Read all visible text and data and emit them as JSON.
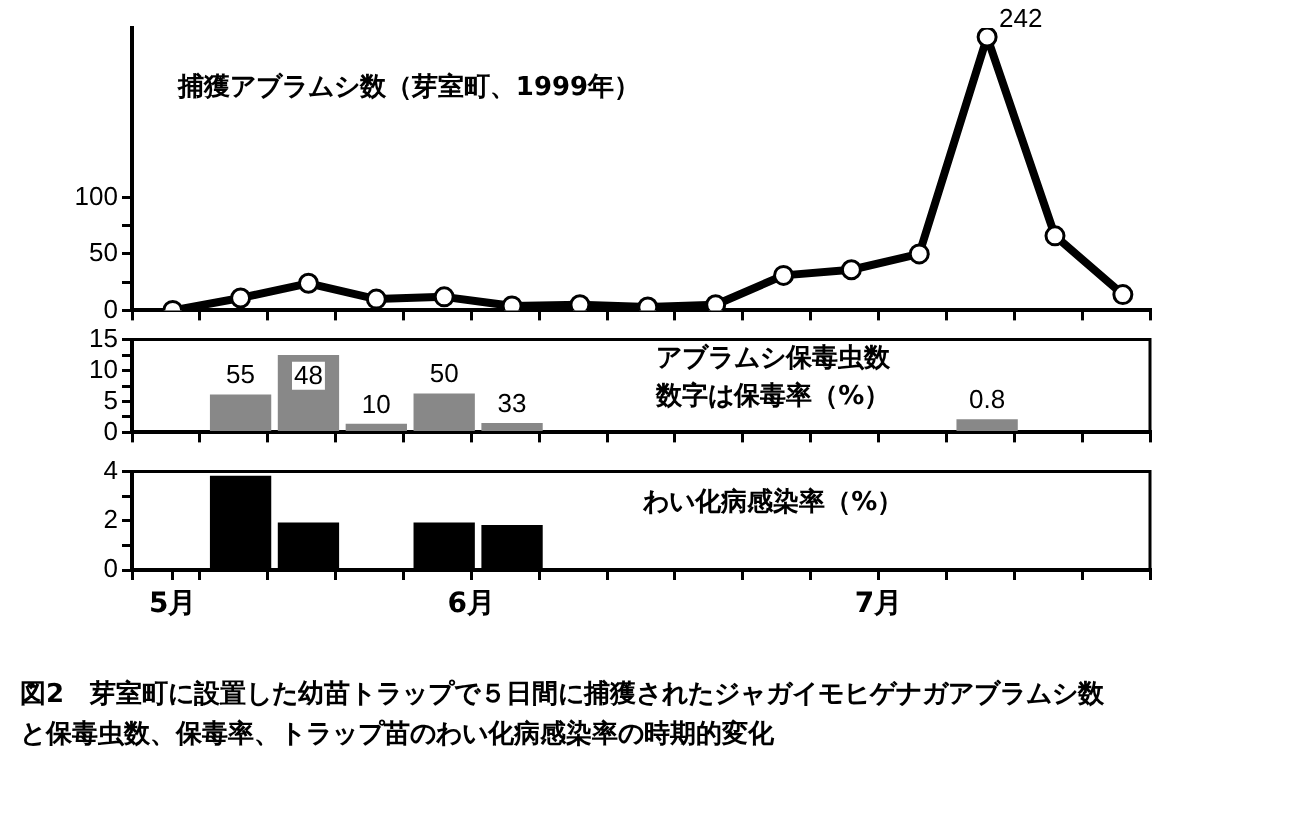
{
  "chart_data": [
    {
      "type": "line",
      "x": [
        "1999-05-25",
        "1999-05-30",
        "1999-06-04",
        "1999-06-09",
        "1999-06-14",
        "1999-06-19",
        "1999-06-24",
        "1999-06-29",
        "1999-07-04",
        "1999-07-09",
        "1999-07-14",
        "1999-07-19",
        "1999-07-24",
        "1999-07-29",
        "1999-08-03"
      ],
      "series": [
        {
          "color": "#000000",
          "values": [
            0,
            11,
            24,
            10,
            12,
            4,
            5,
            3,
            5,
            31,
            36,
            50,
            242,
            66,
            14
          ],
          "value_labels": [
            null,
            null,
            null,
            null,
            null,
            null,
            null,
            null,
            null,
            null,
            null,
            null,
            "242",
            null,
            null
          ]
        }
      ],
      "marker": "circle",
      "ylim": [
        0,
        250
      ],
      "yticks": [
        0,
        {
          "value": 25,
          "label": null
        },
        50,
        {
          "value": 75,
          "label": null
        },
        100
      ],
      "xlim": [
        "1999-05-22",
        "1999-08-05"
      ],
      "xticks": [
        {
          "value": "1999-05-22",
          "label": null
        },
        {
          "value": "1999-05-27",
          "label": null
        },
        {
          "value": "1999-06-01",
          "label": null
        },
        {
          "value": "1999-06-06",
          "label": null
        },
        {
          "value": "1999-06-11",
          "label": null
        },
        {
          "value": "1999-06-16",
          "label": null
        },
        {
          "value": "1999-06-21",
          "label": null
        },
        {
          "value": "1999-06-26",
          "label": null
        },
        {
          "value": "1999-07-01",
          "label": null
        },
        {
          "value": "1999-07-06",
          "label": null
        },
        {
          "value": "1999-07-11",
          "label": null
        },
        {
          "value": "1999-07-16",
          "label": null
        },
        {
          "value": "1999-07-21",
          "label": null
        },
        {
          "value": "1999-07-26",
          "label": null
        },
        {
          "value": "1999-07-31",
          "label": null
        },
        {
          "value": "1999-08-05",
          "label": null
        }
      ],
      "tick_labels": "y",
      "annotations": [
        "捕獲アブラムシ数（芽室町、1999年）"
      ]
    },
    {
      "type": "bar",
      "x": [
        "1999-05-30",
        "1999-06-04",
        "1999-06-09",
        "1999-06-14",
        "1999-06-19",
        "1999-07-24"
      ],
      "series": [
        {
          "color": "#888888",
          "values": [
            6,
            12.4,
            1.3,
            6.2,
            1.4,
            2
          ]
        }
      ],
      "ylim": [
        0,
        15
      ],
      "yticks": [
        0,
        {
          "value": 2.5,
          "label": null
        },
        5,
        {
          "value": 7.5,
          "label": null
        },
        10,
        {
          "value": 12.5,
          "label": null
        },
        15
      ],
      "xlim": [
        "1999-05-22",
        "1999-08-05"
      ],
      "xticks": [
        {
          "value": "1999-05-22",
          "label": null
        },
        {
          "value": "1999-05-27",
          "label": null
        },
        {
          "value": "1999-06-01",
          "label": null
        },
        {
          "value": "1999-06-06",
          "label": null
        },
        {
          "value": "1999-06-11",
          "label": null
        },
        {
          "value": "1999-06-16",
          "label": null
        },
        {
          "value": "1999-06-21",
          "label": null
        },
        {
          "value": "1999-06-26",
          "label": null
        },
        {
          "value": "1999-07-01",
          "label": null
        },
        {
          "value": "1999-07-06",
          "label": null
        },
        {
          "value": "1999-07-11",
          "label": null
        },
        {
          "value": "1999-07-16",
          "label": null
        },
        {
          "value": "1999-07-21",
          "label": null
        },
        {
          "value": "1999-07-26",
          "label": null
        },
        {
          "value": "1999-07-31",
          "label": null
        },
        {
          "value": "1999-08-05",
          "label": null
        }
      ],
      "tick_labels": "y",
      "annotations": [
        "アブラムシ保毒虫数",
        "数字は保毒率（%）",
        {
          "text": "55",
          "x": "1999-05-30",
          "y": 6
        },
        {
          "text": "48",
          "x": "1999-06-04",
          "y": 12.4
        },
        {
          "text": "10",
          "x": "1999-06-09",
          "y": 1.3
        },
        {
          "text": "50",
          "x": "1999-06-14",
          "y": 6.2
        },
        {
          "text": "33",
          "x": "1999-06-19",
          "y": 1.4
        },
        {
          "text": "0.8",
          "x": "1999-07-24",
          "y": 2
        }
      ]
    },
    {
      "type": "bar",
      "x": [
        "1999-05-30",
        "1999-06-04",
        "1999-06-14",
        "1999-06-19"
      ],
      "series": [
        {
          "color": "#000000",
          "values": [
            3.8,
            1.9,
            1.9,
            1.8
          ]
        }
      ],
      "ylim": [
        0,
        4
      ],
      "yticks": [
        0,
        {
          "value": 1,
          "label": null
        },
        2,
        {
          "value": 3,
          "label": null
        },
        4
      ],
      "xlim": [
        "1999-05-22",
        "1999-08-05"
      ],
      "xticks": [
        {
          "value": "1999-05-22",
          "label": null
        },
        {
          "value": "1999-05-25",
          "label": "5月"
        },
        {
          "value": "1999-05-27",
          "label": null
        },
        {
          "value": "1999-06-01",
          "label": null
        },
        {
          "value": "1999-06-06",
          "label": null
        },
        {
          "value": "1999-06-11",
          "label": null
        },
        {
          "value": "1999-06-16",
          "label": "6月"
        },
        {
          "value": "1999-06-21",
          "label": null
        },
        {
          "value": "1999-06-26",
          "label": null
        },
        {
          "value": "1999-07-01",
          "label": null
        },
        {
          "value": "1999-07-06",
          "label": null
        },
        {
          "value": "1999-07-11",
          "label": null
        },
        {
          "value": "1999-07-16",
          "label": "7月"
        },
        {
          "value": "1999-07-21",
          "label": null
        },
        {
          "value": "1999-07-26",
          "label": null
        },
        {
          "value": "1999-07-31",
          "label": null
        },
        {
          "value": "1999-08-05",
          "label": null
        }
      ],
      "annotations": [
        "わい化病感染率（%）",
        "図2　芽室町に設置した幼苗トラップで５日間に捕獲されたジャガイモヒゲナガアブラムシ数と保毒虫数、保毒率、トラップ苗のわい化病感染率の時期的変化"
      ]
    }
  ]
}
